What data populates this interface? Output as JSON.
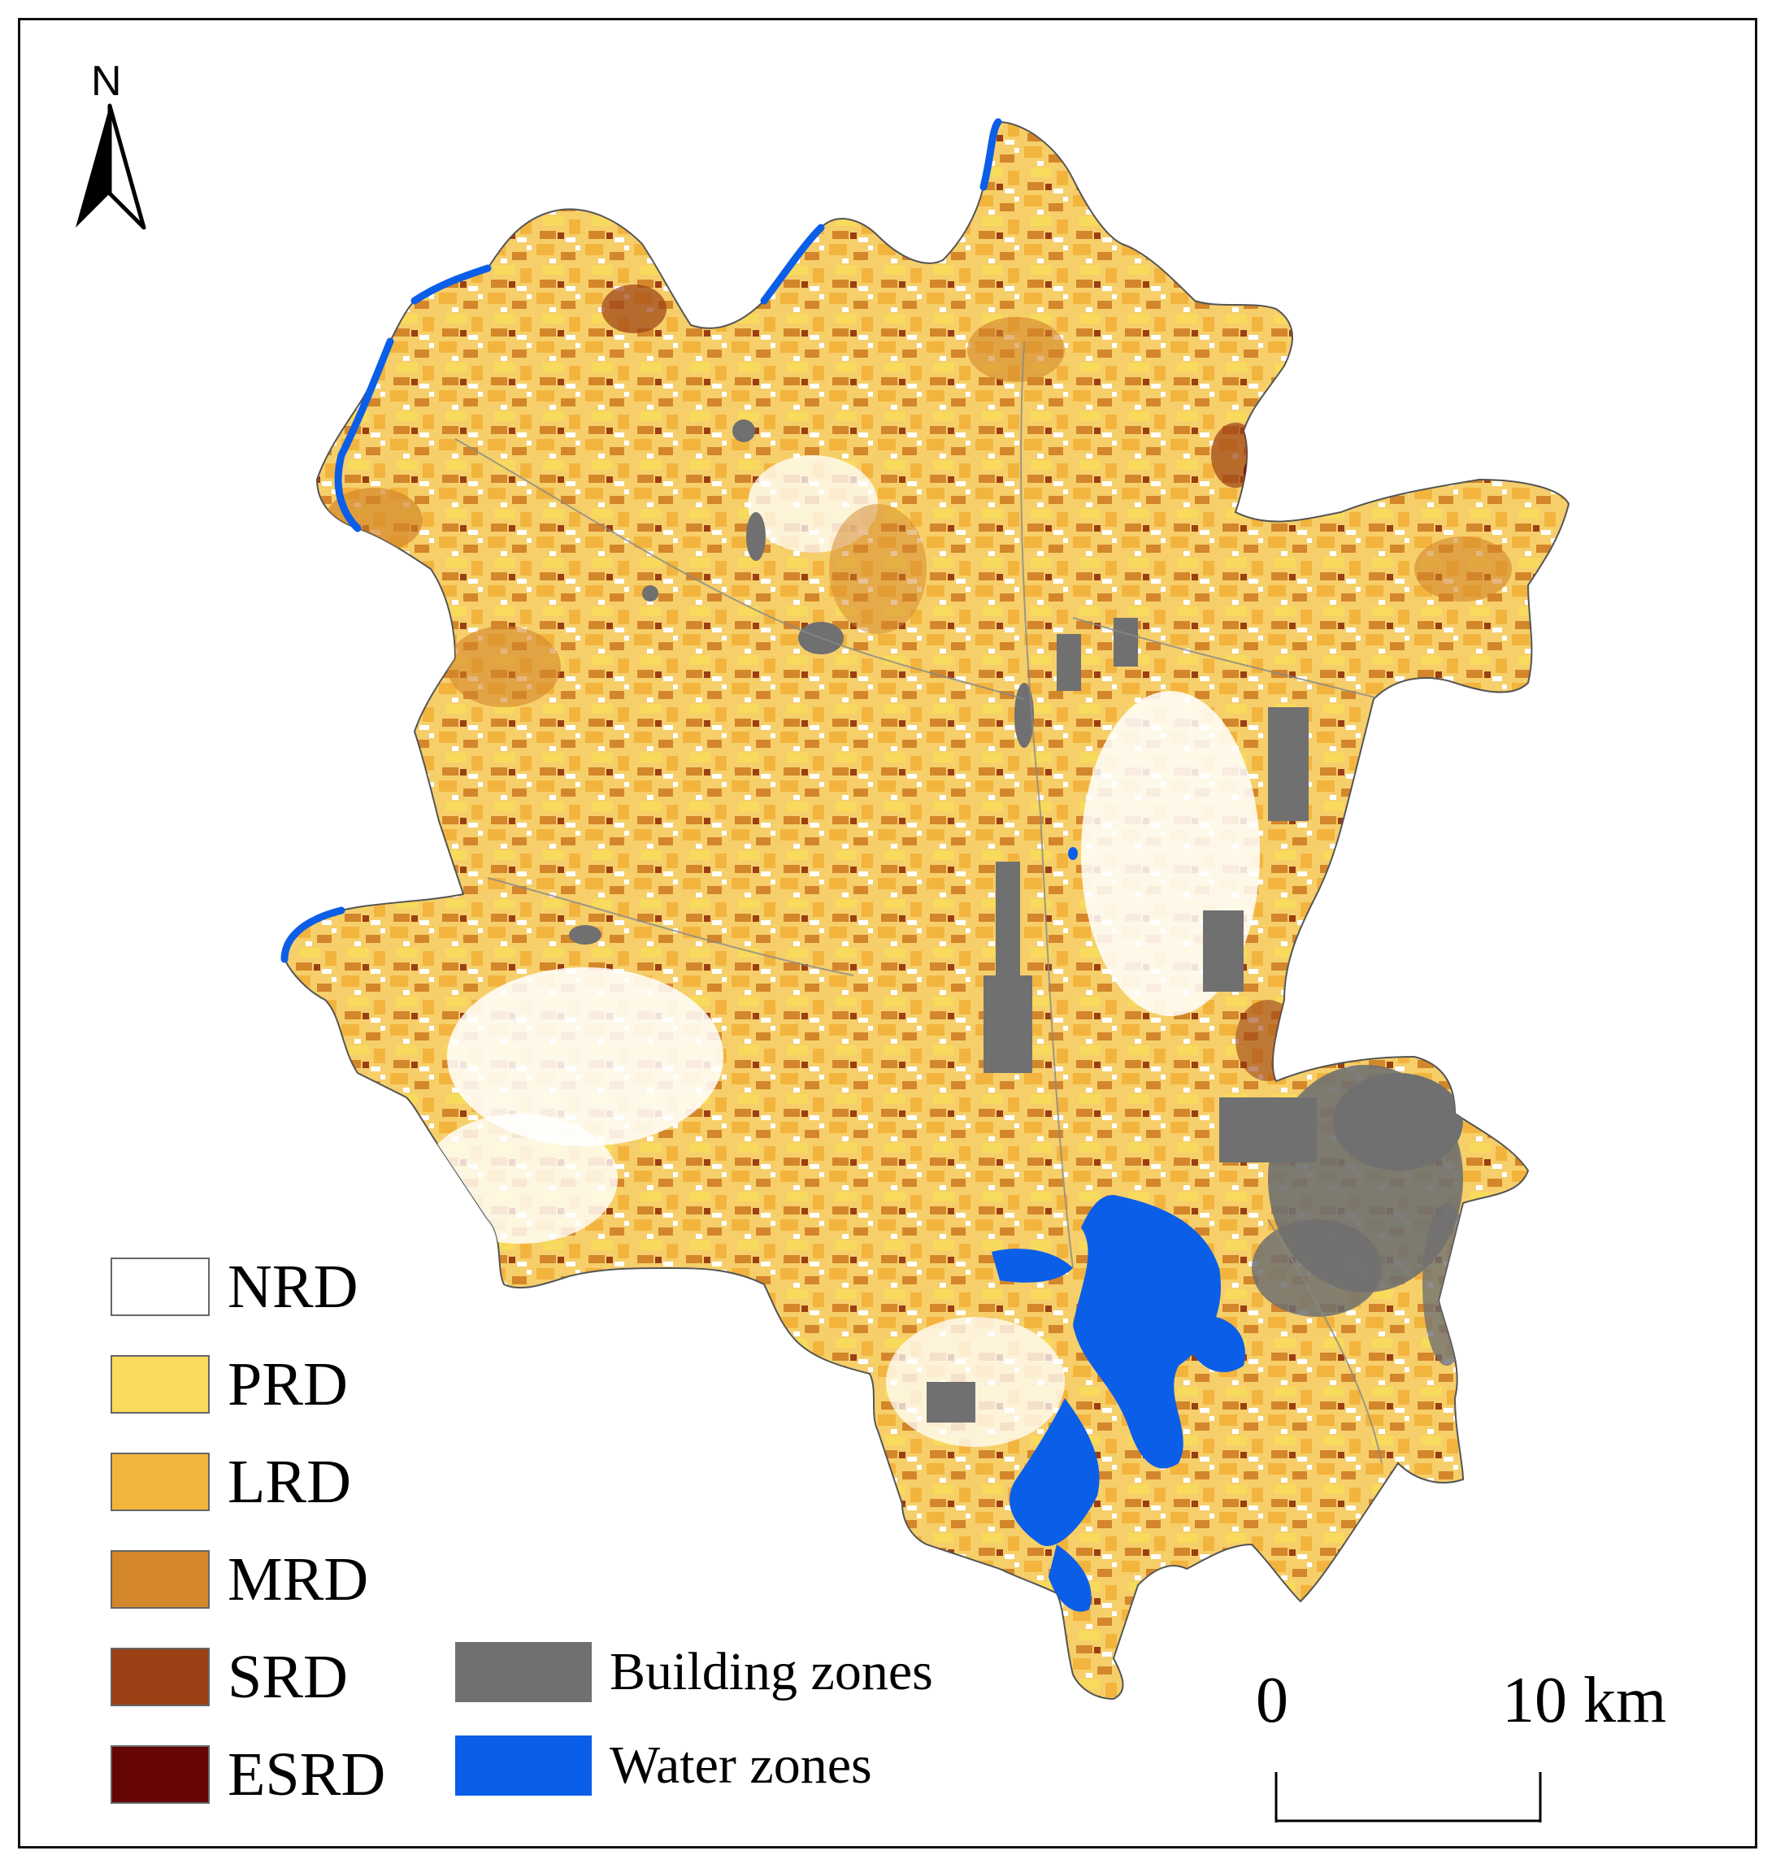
{
  "north_arrow": {
    "label": "N",
    "icon": "north-arrow-icon"
  },
  "legend": {
    "risk_classes": [
      {
        "label": "NRD",
        "color": "#ffffff"
      },
      {
        "label": "PRD",
        "color": "#f8da5c"
      },
      {
        "label": "LRD",
        "color": "#f3b43e"
      },
      {
        "label": "MRD",
        "color": "#d4862a"
      },
      {
        "label": "SRD",
        "color": "#9b3f14"
      },
      {
        "label": "ESRD",
        "color": "#650505"
      }
    ],
    "zones": [
      {
        "label": "Building zones",
        "color": "#707070"
      },
      {
        "label": "Water zones",
        "color": "#0b5ee8"
      }
    ]
  },
  "scale_bar": {
    "start_label": "0",
    "end_label": "10 km"
  }
}
